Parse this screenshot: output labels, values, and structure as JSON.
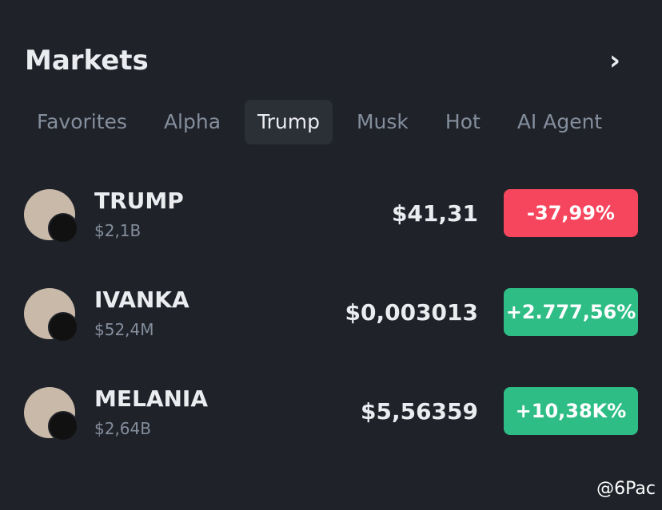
{
  "header": {
    "title": "Markets",
    "arrow": "›"
  },
  "tabs": [
    "Favorites",
    "Alpha",
    "Trump",
    "Musk",
    "Hot",
    "AI Agent"
  ],
  "active_tab": 2,
  "rows": [
    {
      "name": "TRUMP",
      "cap": "$2,1B",
      "price": "$41,31",
      "change": "-37,99%",
      "direction": "down"
    },
    {
      "name": "IVANKA",
      "cap": "$52,4M",
      "price": "$0,003013",
      "change": "+2.777,56%",
      "direction": "up"
    },
    {
      "name": "MELANIA",
      "cap": "$2,64B",
      "price": "$5,56359",
      "change": "+10,38K%",
      "direction": "up"
    }
  ],
  "watermark": "@6Pac"
}
